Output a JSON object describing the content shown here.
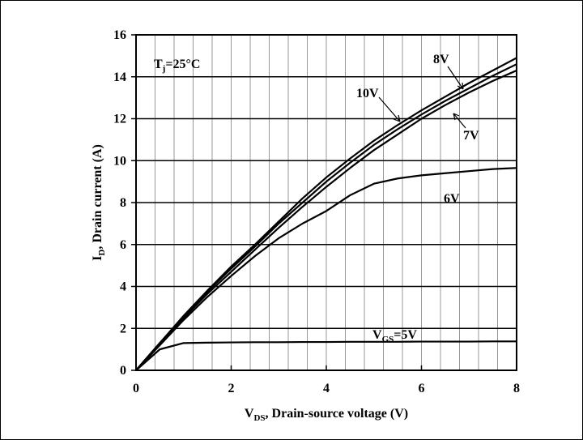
{
  "chart_data": {
    "type": "line",
    "x_label": {
      "main": "V",
      "sub": "DS",
      "rest": ", Drain-source voltage (V)"
    },
    "y_label": {
      "main": "I",
      "sub": "D",
      "rest": ", Drain current (A)"
    },
    "condition": {
      "main": "T",
      "sub": "j",
      "rest": "=25°C"
    },
    "x": [
      0,
      0.5,
      1,
      1.5,
      2,
      2.5,
      3,
      3.5,
      4,
      4.5,
      5,
      5.5,
      6,
      6.5,
      7,
      7.5,
      8
    ],
    "series": [
      {
        "name": "10V",
        "color": "#000000",
        "values": [
          0,
          1.3,
          2.6,
          3.8,
          4.95,
          6.0,
          7.1,
          8.2,
          9.2,
          10.1,
          10.95,
          11.7,
          12.4,
          13.05,
          13.7,
          14.3,
          14.9
        ]
      },
      {
        "name": "8V",
        "color": "#000000",
        "values": [
          0,
          1.3,
          2.55,
          3.75,
          4.85,
          5.9,
          7.0,
          8.0,
          9.0,
          9.9,
          10.75,
          11.5,
          12.2,
          12.85,
          13.45,
          14.05,
          14.6
        ]
      },
      {
        "name": "7V",
        "color": "#000000",
        "values": [
          0,
          1.3,
          2.5,
          3.65,
          4.7,
          5.75,
          6.8,
          7.8,
          8.75,
          9.65,
          10.5,
          11.25,
          12.0,
          12.65,
          13.25,
          13.8,
          14.3
        ]
      },
      {
        "name": "6V",
        "color": "#000000",
        "values": [
          0,
          1.2,
          2.4,
          3.5,
          4.5,
          5.45,
          6.3,
          7.0,
          7.6,
          8.35,
          8.9,
          9.15,
          9.3,
          9.4,
          9.5,
          9.6,
          9.65
        ]
      },
      {
        "name_main": "V",
        "name_sub": "GS",
        "name": "=5V",
        "color": "#000000",
        "values": [
          0,
          1.0,
          1.3,
          1.32,
          1.33,
          1.34,
          1.34,
          1.35,
          1.35,
          1.36,
          1.36,
          1.36,
          1.37,
          1.37,
          1.37,
          1.38,
          1.38
        ]
      }
    ],
    "xlim": [
      0,
      8
    ],
    "ylim": [
      0,
      16
    ],
    "xticks": [
      0,
      2,
      4,
      6,
      8
    ],
    "yticks": [
      0,
      2,
      4,
      6,
      8,
      10,
      12,
      14,
      16
    ],
    "minor_xticks": [
      0.4,
      0.8,
      1.2,
      1.6,
      2.4,
      2.8,
      3.2,
      3.6,
      4.4,
      4.8,
      5.2,
      5.6,
      6.4,
      6.8,
      7.2,
      7.6
    ],
    "grid": true
  }
}
